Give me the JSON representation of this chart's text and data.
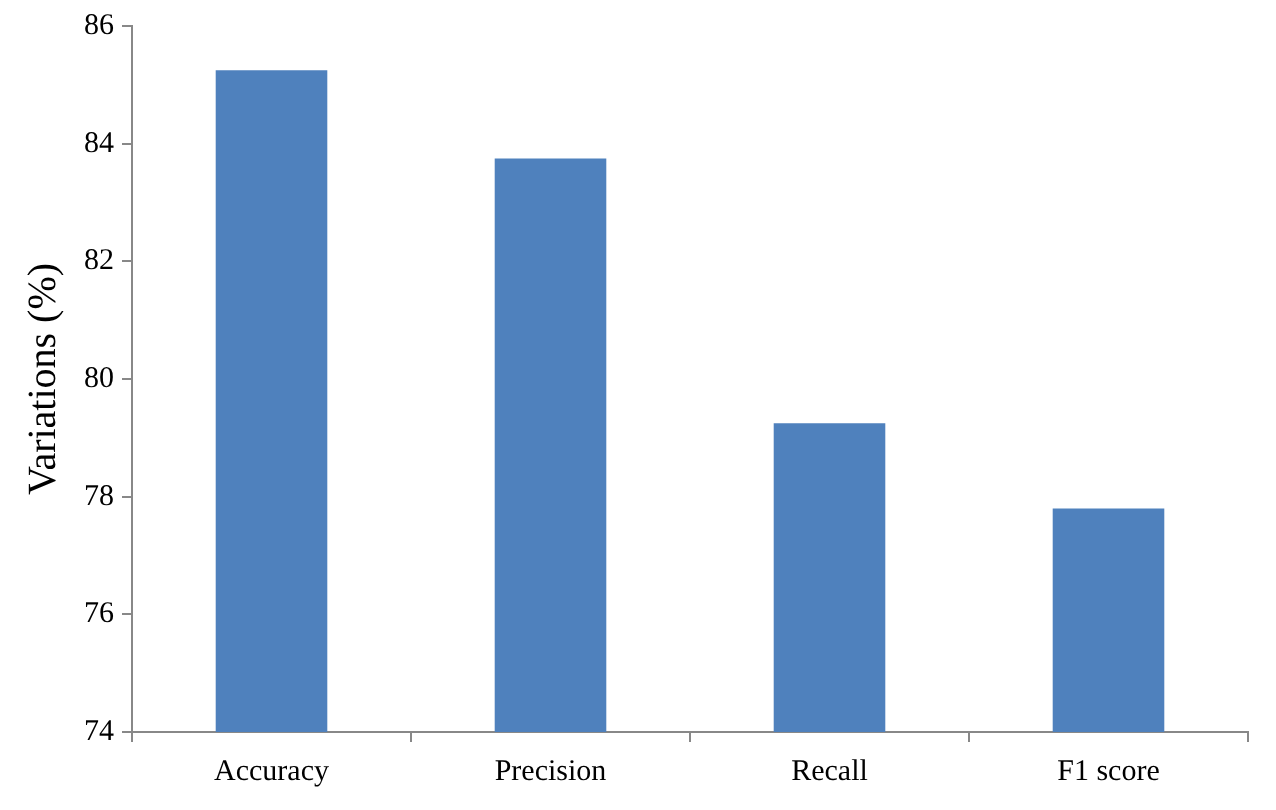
{
  "chart_data": {
    "type": "bar",
    "ylabel": "Variations (%)",
    "categories": [
      "Accuracy",
      "Precision",
      "Recall",
      "F1 score"
    ],
    "values": [
      85.25,
      83.75,
      79.25,
      77.8
    ],
    "color": "#4f81bd",
    "ylim": [
      74,
      86
    ],
    "yticks": [
      74,
      76,
      78,
      80,
      82,
      84,
      86
    ],
    "grid": false,
    "legend": false
  }
}
